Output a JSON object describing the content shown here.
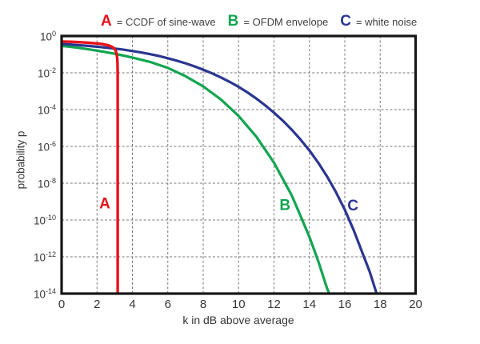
{
  "figure": {
    "legend": {
      "items": [
        {
          "letter": "A",
          "text": "= CCDF of sine-wave"
        },
        {
          "letter": "B",
          "text": "= OFDM envelope"
        },
        {
          "letter": "C",
          "text": "= white noise"
        }
      ]
    },
    "colors": {
      "series_a_red": "#e8111a",
      "series_b_green": "#12a550",
      "series_c_blue": "#2b3690",
      "grid": "#787878",
      "frame": "#161616",
      "text": "#414042",
      "background": "#ffffff"
    }
  },
  "chart_data": {
    "type": "line",
    "title": "",
    "xlabel": "k in dB above average",
    "ylabel": "probability p",
    "grid": "dashed",
    "legend_position": "top",
    "x_axis": {
      "min": 0,
      "max": 20,
      "ticks": [
        0,
        2,
        4,
        6,
        8,
        10,
        12,
        14,
        16,
        18,
        20
      ]
    },
    "y_axis": {
      "scale": "log",
      "max_exponent": 0,
      "min_exponent": -14,
      "tick_exponents": [
        0,
        -2,
        -4,
        -6,
        -8,
        -10,
        -12,
        -14
      ]
    },
    "series": [
      {
        "name": "A",
        "label": "CCDF of sine-wave",
        "color": "#e8111a",
        "draw_order": 2,
        "width": 3.4,
        "points": [
          [
            0,
            0.5
          ],
          [
            0.5,
            0.485
          ],
          [
            1.0,
            0.462
          ],
          [
            1.5,
            0.432
          ],
          [
            2.0,
            0.395
          ],
          [
            2.3,
            0.363
          ],
          [
            2.6,
            0.318
          ],
          [
            2.8,
            0.272
          ],
          [
            2.95,
            0.22
          ],
          [
            3.05,
            0.165
          ],
          [
            3.1,
            0.115
          ],
          [
            3.14,
            0.067
          ],
          [
            3.16,
            0.03
          ],
          [
            3.17,
            0.008
          ],
          [
            3.17,
            1e-14
          ]
        ]
      },
      {
        "name": "B",
        "label": "OFDM envelope",
        "color": "#12a550",
        "draw_order": 0,
        "width": 3.2,
        "points": [
          [
            0,
            0.29
          ],
          [
            0.5,
            0.26
          ],
          [
            1,
            0.225
          ],
          [
            1.5,
            0.19
          ],
          [
            2,
            0.16
          ],
          [
            2.5,
            0.132
          ],
          [
            3,
            0.108
          ],
          [
            3.5,
            0.086
          ],
          [
            4,
            0.068
          ],
          [
            5,
            0.039
          ],
          [
            6,
            0.0185
          ],
          [
            7,
            0.0066
          ],
          [
            8,
            0.00182
          ],
          [
            9,
            0.000355
          ],
          [
            10,
            4.54e-05
          ],
          [
            11,
            3.4e-06
          ],
          [
            12,
            1.3e-07
          ],
          [
            13,
            2.2e-09
          ],
          [
            13.5,
            1.65e-10
          ],
          [
            14,
            1.2e-11
          ],
          [
            14.5,
            5.8e-13
          ],
          [
            15,
            1.9e-14
          ],
          [
            15.12,
            1e-14
          ]
        ]
      },
      {
        "name": "C",
        "label": "white noise",
        "color": "#2b3690",
        "draw_order": 1,
        "width": 3.2,
        "points": [
          [
            0,
            0.37
          ],
          [
            0.5,
            0.345
          ],
          [
            1,
            0.315
          ],
          [
            1.5,
            0.29
          ],
          [
            2,
            0.262
          ],
          [
            2.5,
            0.235
          ],
          [
            3,
            0.207
          ],
          [
            3.5,
            0.18
          ],
          [
            4,
            0.152
          ],
          [
            4.5,
            0.127
          ],
          [
            5,
            0.103
          ],
          [
            5.5,
            0.082
          ],
          [
            6,
            0.062
          ],
          [
            6.5,
            0.046
          ],
          [
            7,
            0.033
          ],
          [
            7.5,
            0.0225
          ],
          [
            8,
            0.0148
          ],
          [
            8.5,
            0.0093
          ],
          [
            9,
            0.0056
          ],
          [
            9.5,
            0.0032
          ],
          [
            10,
            0.00172
          ],
          [
            10.5,
            0.00086
          ],
          [
            11,
            0.0004
          ],
          [
            11.5,
            0.000172
          ],
          [
            12,
            6.85e-05
          ],
          [
            12.5,
            2.48e-05
          ],
          [
            13,
            8.1e-06
          ],
          [
            13.5,
            2.35e-06
          ],
          [
            14,
            6e-07
          ],
          [
            14.5,
            1.3e-07
          ],
          [
            15,
            2.3e-08
          ],
          [
            15.5,
            3.3e-09
          ],
          [
            16,
            3.6e-10
          ],
          [
            16.5,
            2.8e-11
          ],
          [
            17,
            1.6e-12
          ],
          [
            17.4,
            1.6e-13
          ],
          [
            17.8,
            1e-14
          ]
        ]
      }
    ],
    "annotations": [
      {
        "text": "A",
        "k": 2.44,
        "log10p": -9.08,
        "color": "#e8111a"
      },
      {
        "text": "B",
        "k": 12.62,
        "log10p": -9.18,
        "color": "#12a550"
      },
      {
        "text": "C",
        "k": 16.46,
        "log10p": -9.2,
        "color": "#2b3690"
      }
    ]
  }
}
